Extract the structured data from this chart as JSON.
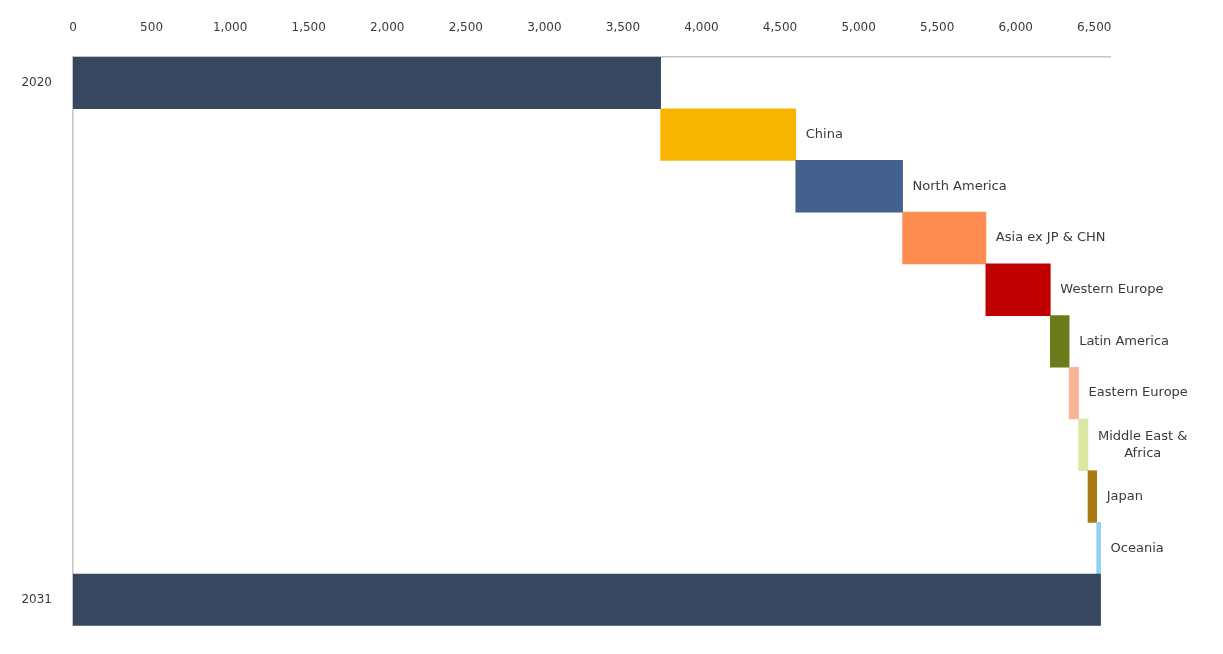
{
  "chart_data": {
    "type": "bar",
    "orientation": "horizontal",
    "categories": [
      "2020",
      "China",
      "North America",
      "Asia ex JP & CHN",
      "Western Europe",
      "Latin America",
      "Eastern Europe",
      "Middle East & Africa",
      "Japan",
      "Oceania",
      "2031"
    ],
    "base": [
      0,
      3740,
      4600,
      5280,
      5810,
      6220,
      6340,
      6400,
      6460,
      6515,
      0
    ],
    "values": [
      3740,
      860,
      680,
      530,
      410,
      120,
      60,
      60,
      55,
      25,
      6540
    ],
    "colors": [
      "#36475f",
      "#f7b500",
      "#44618d",
      "#fd8d50",
      "#c00000",
      "#6a7b1a",
      "#f8b597",
      "#dbe8a2",
      "#a97b12",
      "#8dd3f3",
      "#36475f"
    ],
    "xlim": [
      0,
      6600
    ],
    "xticks": [
      0,
      500,
      {
        "value": 1000,
        "label": "1,000"
      },
      {
        "value": 1500,
        "label": "1,500"
      },
      {
        "value": 2000,
        "label": "2,000"
      },
      {
        "value": 2500,
        "label": "2,500"
      },
      {
        "value": 3000,
        "label": "3,000"
      },
      {
        "value": 3500,
        "label": "3,500"
      },
      {
        "value": 4000,
        "label": "4,000"
      },
      {
        "value": 4500,
        "label": "4,500"
      },
      {
        "value": 5000,
        "label": "5,000"
      },
      {
        "value": 5500,
        "label": "5,500"
      },
      {
        "value": 6000,
        "label": "6,000"
      },
      {
        "value": 6500,
        "label": "6,500"
      }
    ]
  }
}
